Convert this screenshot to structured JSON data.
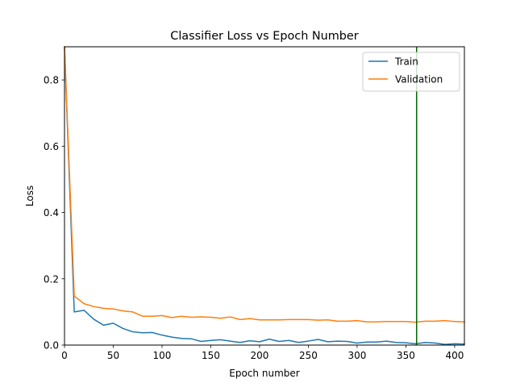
{
  "chart_data": {
    "type": "line",
    "title": "Classifier Loss vs Epoch Number",
    "xlabel": "Epoch number",
    "ylabel": "Loss",
    "xlim": [
      0,
      410
    ],
    "ylim": [
      0,
      0.9
    ],
    "xticks": [
      0,
      50,
      100,
      150,
      200,
      250,
      300,
      350,
      400
    ],
    "yticks": [
      0.0,
      0.2,
      0.4,
      0.6,
      0.8
    ],
    "grid": false,
    "legend_position": "top-right",
    "x": [
      0,
      10,
      20,
      30,
      40,
      50,
      60,
      70,
      80,
      90,
      100,
      110,
      120,
      130,
      140,
      150,
      160,
      170,
      180,
      190,
      200,
      210,
      220,
      230,
      240,
      250,
      260,
      270,
      280,
      290,
      300,
      310,
      320,
      330,
      340,
      350,
      360,
      370,
      380,
      390,
      400,
      410
    ],
    "series": [
      {
        "name": "Train",
        "color": "#1f77b4",
        "values": [
          0.9,
          0.1,
          0.105,
          0.078,
          0.06,
          0.066,
          0.05,
          0.04,
          0.037,
          0.038,
          0.03,
          0.024,
          0.02,
          0.019,
          0.011,
          0.014,
          0.016,
          0.012,
          0.008,
          0.013,
          0.01,
          0.018,
          0.011,
          0.014,
          0.008,
          0.012,
          0.017,
          0.01,
          0.012,
          0.011,
          0.006,
          0.009,
          0.009,
          0.012,
          0.008,
          0.007,
          0.004,
          0.008,
          0.006,
          0.002,
          0.004,
          0.003
        ]
      },
      {
        "name": "Validation",
        "color": "#ff7f0e",
        "values": [
          0.9,
          0.148,
          0.125,
          0.116,
          0.111,
          0.109,
          0.103,
          0.1,
          0.087,
          0.087,
          0.089,
          0.083,
          0.087,
          0.084,
          0.085,
          0.084,
          0.081,
          0.085,
          0.077,
          0.08,
          0.076,
          0.076,
          0.076,
          0.077,
          0.077,
          0.077,
          0.075,
          0.076,
          0.072,
          0.072,
          0.074,
          0.07,
          0.07,
          0.071,
          0.071,
          0.071,
          0.069,
          0.072,
          0.072,
          0.074,
          0.071,
          0.07
        ]
      }
    ],
    "annotations": [
      {
        "type": "vline",
        "x": 361,
        "color": "#006400"
      }
    ]
  }
}
